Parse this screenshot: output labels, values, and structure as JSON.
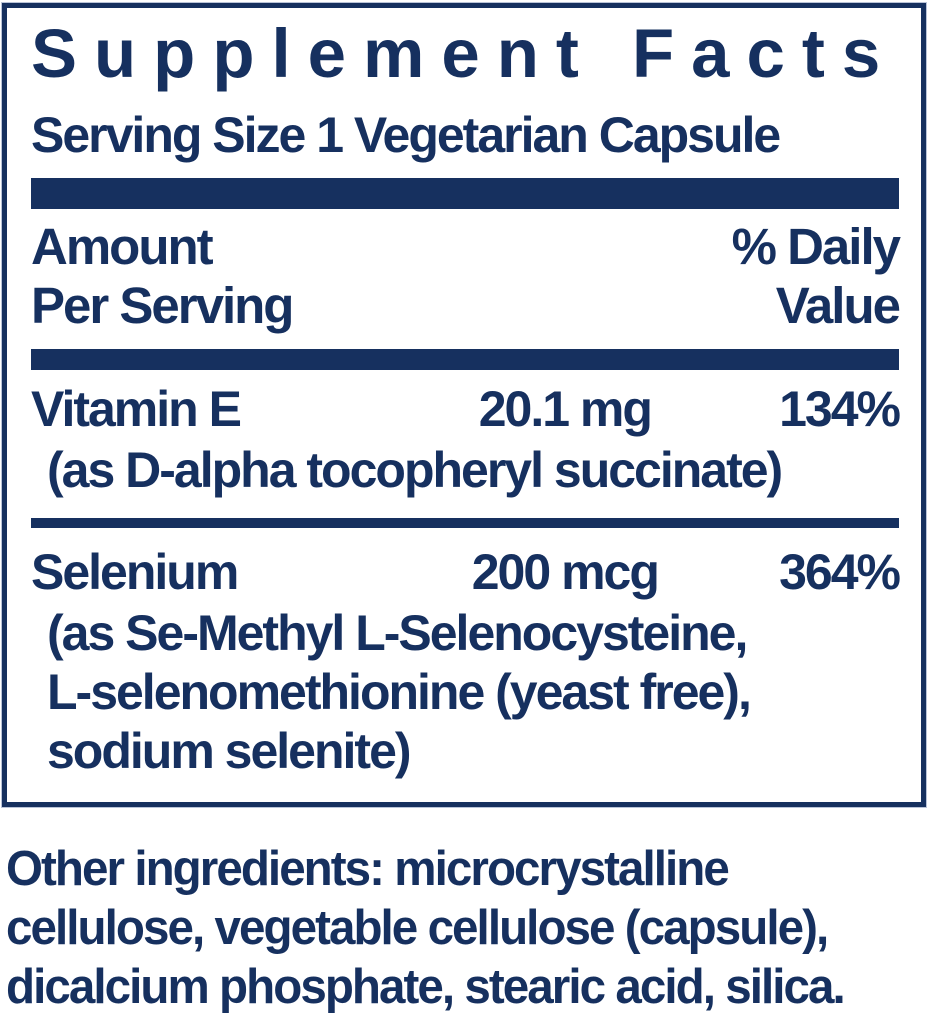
{
  "colors": {
    "navy": "#16305f",
    "background": "#ffffff",
    "border_halo": "#b9c3d8"
  },
  "panel": {
    "title": "Supplement Facts",
    "serving_size": "Serving Size 1 Vegetarian Capsule",
    "columns": {
      "amount_header_lines": [
        "Amount",
        "Per Serving"
      ],
      "daily_value_header_lines": [
        "% Daily",
        "Value"
      ]
    },
    "rows": [
      {
        "name": "Vitamin E",
        "amount": "20.1 mg",
        "daily_value": "134%",
        "detail_lines": [
          "(as D-alpha tocopheryl succinate)"
        ]
      },
      {
        "name": "Selenium",
        "amount": "200 mcg",
        "daily_value": "364%",
        "detail_lines": [
          "(as Se-Methyl L-Selenocysteine,",
          "L-selenomethionine (yeast free),",
          "sodium selenite)"
        ]
      }
    ]
  },
  "footer": {
    "other_ingredients_lines": [
      "Other ingredients: microcrystalline",
      "cellulose, vegetable cellulose (capsule),",
      "dicalcium phosphate, stearic acid, silica."
    ]
  }
}
